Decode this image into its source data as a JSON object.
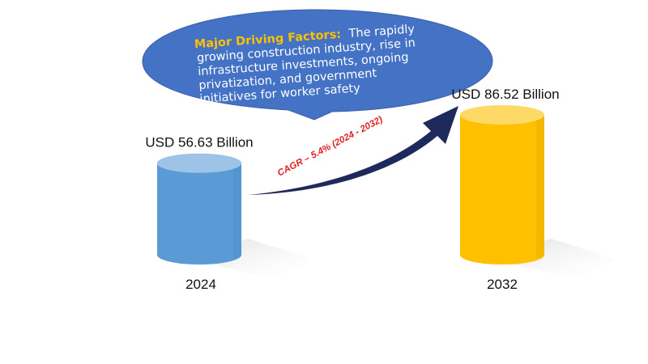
{
  "callout": {
    "heading": "Major Driving Factors:",
    "lines": [
      "The rapidly",
      "growing construction industry, rise in",
      "infrastructure investments, ongoing",
      "privatization, and government",
      "initiatives for worker safety"
    ]
  },
  "cagr_label": "CAGR – 5.4% (2024 - 2032)",
  "colors": {
    "bubble": "#4472c4",
    "bar_2024": "#5b9bd5",
    "bar_2032": "#ffc000",
    "arrow": "#1f2a5c",
    "cagr_text": "#e02020"
  },
  "chart_data": {
    "type": "bar",
    "categories": [
      "2024",
      "2032"
    ],
    "values": [
      56.63,
      86.52
    ],
    "value_labels": [
      "USD 56.63 Billion",
      "USD 86.52 Billion"
    ],
    "unit": "USD Billion",
    "title": "",
    "xlabel": "",
    "ylabel": "",
    "ylim": [
      0,
      100
    ],
    "grid": false,
    "legend": "none"
  }
}
